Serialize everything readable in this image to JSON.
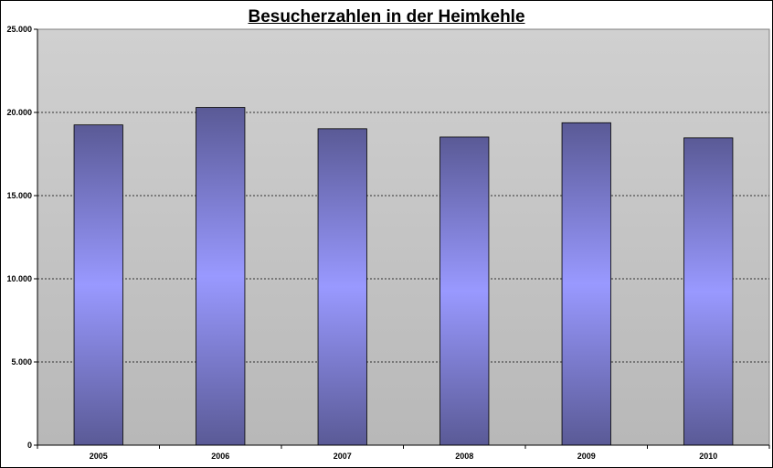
{
  "chart_data": {
    "type": "bar",
    "title": "Besucherzahlen in der Heimkehle",
    "xlabel": "",
    "ylabel": "",
    "categories": [
      "2005",
      "2006",
      "2007",
      "2008",
      "2009",
      "2010"
    ],
    "values": [
      19250,
      20300,
      19020,
      18520,
      19380,
      18470
    ],
    "ylim": [
      0,
      25000
    ],
    "yticks": [
      0,
      5000,
      10000,
      15000,
      20000,
      25000
    ],
    "ytick_labels": [
      "0",
      "5.000",
      "10.000",
      "15.000",
      "20.000",
      "25.000"
    ],
    "grid": "horizontal-dashed",
    "legend": "none",
    "colors": {
      "plot_background": "#c0c0c0",
      "bar_edge": "#5a5a96",
      "bar_center": "#9999ff",
      "grid": "#000000"
    }
  }
}
